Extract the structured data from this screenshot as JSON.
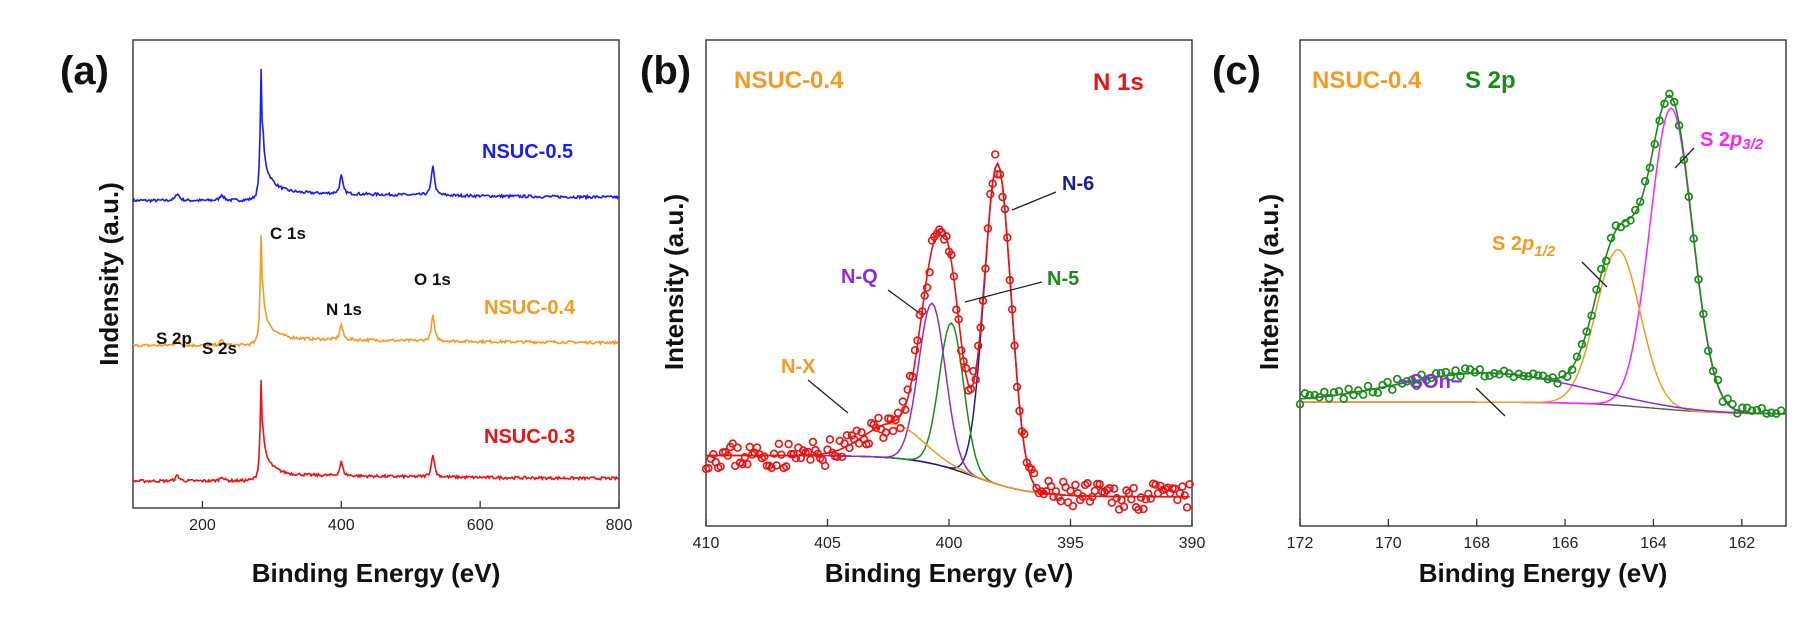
{
  "chart_data": [
    {
      "id": "a",
      "type": "line",
      "panel_label": "(a)",
      "xlabel": "Binding Energy (eV)",
      "ylabel": "Indensity (a.u.)",
      "xlim": [
        100,
        800
      ],
      "xticks": [
        200,
        400,
        600,
        800
      ],
      "peak_labels": [
        "C 1s",
        "N 1s",
        "O 1s",
        "S 2p",
        "S 2s"
      ],
      "series": [
        {
          "name": "NSUC-0.5",
          "color": "#1a1aff",
          "baseline": 0.66
        },
        {
          "name": "NSUC-0.4",
          "color": "#f59a23",
          "baseline": 0.35
        },
        {
          "name": "NSUC-0.3",
          "color": "#ee1111",
          "baseline": 0.06
        }
      ]
    },
    {
      "id": "b",
      "type": "scatter",
      "panel_label": "(b)",
      "sample": "NSUC-0.4",
      "region": "N 1s",
      "xlabel": "Binding Energy (eV)",
      "ylabel": "Intensity (a.u.)",
      "xlim": [
        410,
        390
      ],
      "xticks": [
        410,
        405,
        400,
        395,
        390
      ],
      "components": [
        {
          "name": "N-6",
          "center": 398.0,
          "color": "#1a1a9e"
        },
        {
          "name": "N-5",
          "center": 399.9,
          "color": "#1a8c1a"
        },
        {
          "name": "N-Q",
          "center": 400.7,
          "color": "#8a2be2"
        },
        {
          "name": "N-X",
          "center": 402.3,
          "color": "#f59a23"
        }
      ]
    },
    {
      "id": "c",
      "type": "scatter",
      "panel_label": "(c)",
      "sample": "NSUC-0.4",
      "region": "S 2p",
      "xlabel": "Binding Energy (eV)",
      "ylabel": "Intensity (a.u.)",
      "xlim": [
        172,
        161
      ],
      "xticks": [
        172,
        170,
        168,
        166,
        164,
        162
      ],
      "components": [
        {
          "name": "S 2p3/2",
          "label_main": "S 2",
          "label_ital": "p",
          "label_sub": "3/2",
          "center": 163.6,
          "color": "#ff22ff"
        },
        {
          "name": "S 2p1/2",
          "label_main": "S 2",
          "label_ital": "p",
          "label_sub": "1/2",
          "center": 164.8,
          "color": "#f59a23"
        },
        {
          "name": "-SOn-",
          "label": "−SOn−",
          "center": 167.8,
          "color": "#8a2be2"
        }
      ]
    }
  ]
}
